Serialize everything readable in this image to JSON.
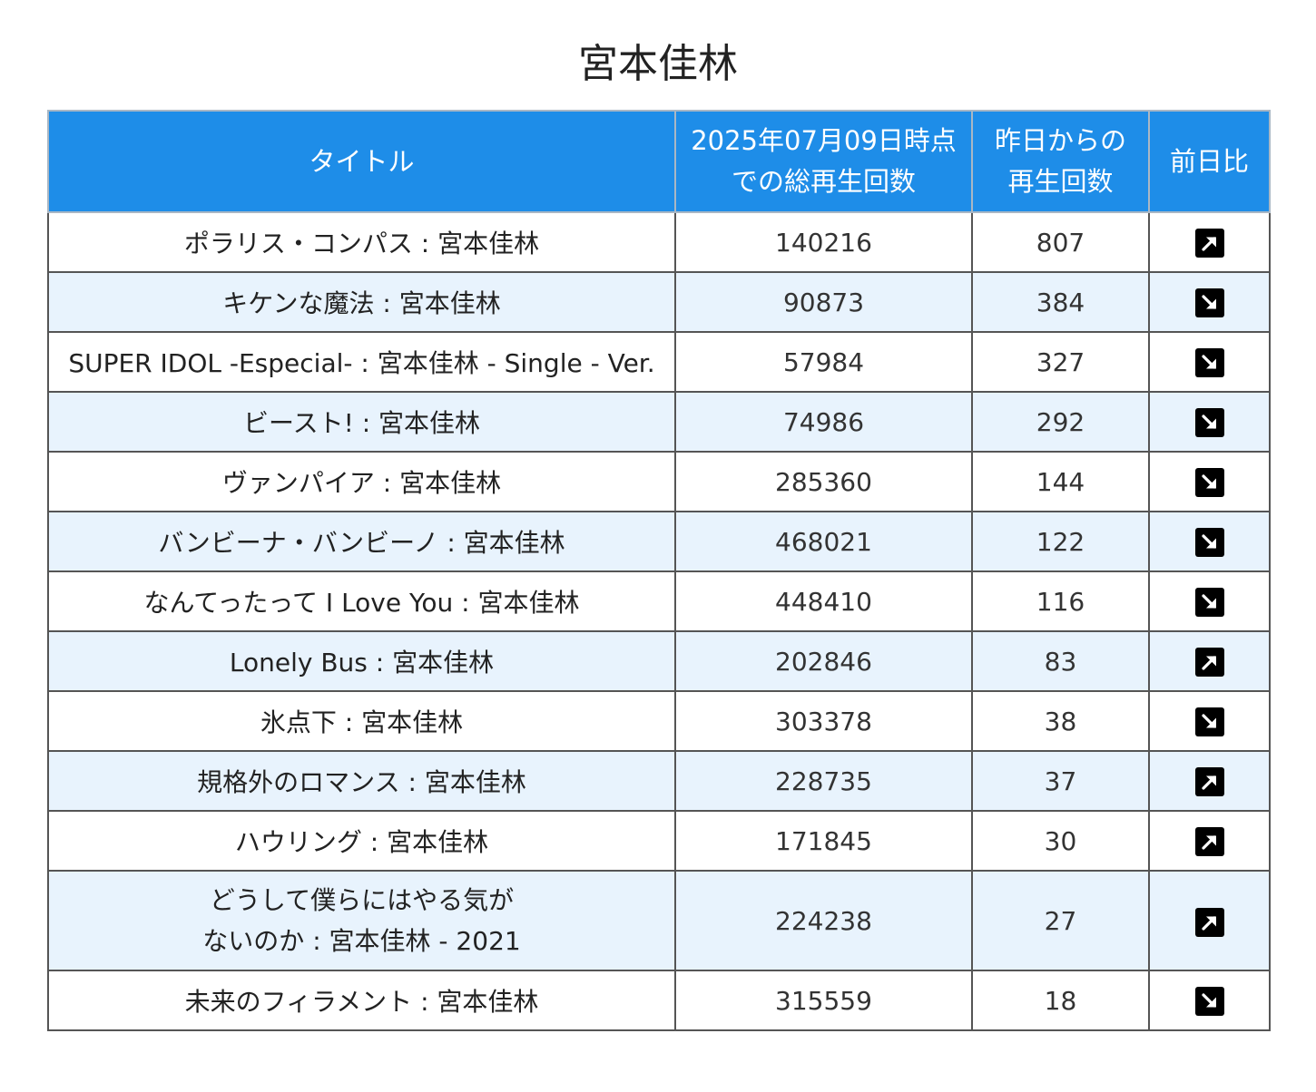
{
  "page": {
    "title": "宮本佳林"
  },
  "table": {
    "headers": {
      "title": "タイトル",
      "total_line1": "2025年07月09日時点",
      "total_line2": "での総再生回数",
      "daily_line1": "昨日からの",
      "daily_line2": "再生回数",
      "change": "前日比"
    },
    "rows": [
      {
        "title": "ポラリス・コンパス : 宮本佳林",
        "total": "140216",
        "daily": "807",
        "trend": "up"
      },
      {
        "title": "キケンな魔法 : 宮本佳林",
        "total": "90873",
        "daily": "384",
        "trend": "down"
      },
      {
        "title": "SUPER IDOL -Especial- : 宮本佳林 - Single - Ver.",
        "total": "57984",
        "daily": "327",
        "trend": "down"
      },
      {
        "title": "ビースト! : 宮本佳林",
        "total": "74986",
        "daily": "292",
        "trend": "down"
      },
      {
        "title": "ヴァンパイア : 宮本佳林",
        "total": "285360",
        "daily": "144",
        "trend": "down"
      },
      {
        "title": "バンビーナ・バンビーノ : 宮本佳林",
        "total": "468021",
        "daily": "122",
        "trend": "down"
      },
      {
        "title": "なんてったって I Love You : 宮本佳林",
        "total": "448410",
        "daily": "116",
        "trend": "down"
      },
      {
        "title": "Lonely Bus : 宮本佳林",
        "total": "202846",
        "daily": "83",
        "trend": "up"
      },
      {
        "title": "氷点下 : 宮本佳林",
        "total": "303378",
        "daily": "38",
        "trend": "down"
      },
      {
        "title": "規格外のロマンス : 宮本佳林",
        "total": "228735",
        "daily": "37",
        "trend": "up"
      },
      {
        "title": "ハウリング : 宮本佳林",
        "total": "171845",
        "daily": "30",
        "trend": "up"
      },
      {
        "title_line1": "どうして僕らにはやる気が",
        "title_line2": "ないのか : 宮本佳林 - 2021",
        "total": "224238",
        "daily": "27",
        "trend": "up"
      },
      {
        "title": "未来のフィラメント : 宮本佳林",
        "total": "315559",
        "daily": "18",
        "trend": "down"
      }
    ]
  },
  "icons": {
    "up": "arrow-up-right-icon",
    "down": "arrow-down-right-icon"
  }
}
